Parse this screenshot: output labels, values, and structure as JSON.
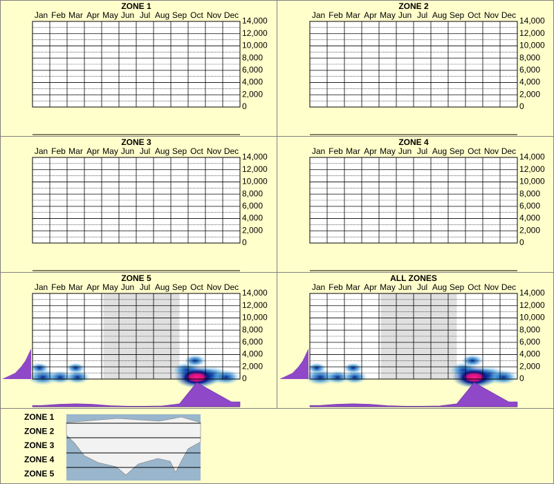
{
  "chart_data": [
    {
      "type": "heatmap",
      "title": "ZONE 1",
      "categories": [
        "Jan",
        "Feb",
        "Mar",
        "Apr",
        "May",
        "Jun",
        "Jul",
        "Aug",
        "Sep",
        "Oct",
        "Nov",
        "Dec"
      ],
      "ylim": [
        0,
        14000
      ],
      "yticks": [
        0,
        {
          "value": 2000,
          "label": "2,000"
        },
        {
          "value": 4000,
          "label": "4,000"
        },
        {
          "value": 6000,
          "label": "6,000"
        },
        {
          "value": 8000,
          "label": "8,000"
        },
        {
          "value": 10000,
          "label": "10,000"
        },
        {
          "value": 12000,
          "label": "12,000"
        },
        {
          "value": 14000,
          "label": "14,000"
        }
      ],
      "grid": true
    },
    {
      "type": "heatmap",
      "title": "ZONE 2",
      "categories": [
        "Jan",
        "Feb",
        "Mar",
        "Apr",
        "May",
        "Jun",
        "Jul",
        "Aug",
        "Sep",
        "Oct",
        "Nov",
        "Dec"
      ],
      "ylim": [
        0,
        14000
      ],
      "yticks": [
        0,
        {
          "value": 2000,
          "label": "2,000"
        },
        {
          "value": 4000,
          "label": "4,000"
        },
        {
          "value": 6000,
          "label": "6,000"
        },
        {
          "value": 8000,
          "label": "8,000"
        },
        {
          "value": 10000,
          "label": "10,000"
        },
        {
          "value": 12000,
          "label": "12,000"
        },
        {
          "value": 14000,
          "label": "14,000"
        }
      ],
      "grid": true
    },
    {
      "type": "heatmap",
      "title": "ZONE 3",
      "categories": [
        "Jan",
        "Feb",
        "Mar",
        "Apr",
        "May",
        "Jun",
        "Jul",
        "Aug",
        "Sep",
        "Oct",
        "Nov",
        "Dec"
      ],
      "ylim": [
        0,
        14000
      ],
      "yticks": [
        0,
        {
          "value": 2000,
          "label": "2,000"
        },
        {
          "value": 4000,
          "label": "4,000"
        },
        {
          "value": 6000,
          "label": "6,000"
        },
        {
          "value": 8000,
          "label": "8,000"
        },
        {
          "value": 10000,
          "label": "10,000"
        },
        {
          "value": 12000,
          "label": "12,000"
        },
        {
          "value": 14000,
          "label": "14,000"
        }
      ],
      "grid": true
    },
    {
      "type": "heatmap",
      "title": "ZONE 4",
      "categories": [
        "Jan",
        "Feb",
        "Mar",
        "Apr",
        "May",
        "Jun",
        "Jul",
        "Aug",
        "Sep",
        "Oct",
        "Nov",
        "Dec"
      ],
      "ylim": [
        0,
        14000
      ],
      "yticks": [
        0,
        {
          "value": 2000,
          "label": "2,000"
        },
        {
          "value": 4000,
          "label": "4,000"
        },
        {
          "value": 6000,
          "label": "6,000"
        },
        {
          "value": 8000,
          "label": "8,000"
        },
        {
          "value": 10000,
          "label": "10,000"
        },
        {
          "value": 12000,
          "label": "12,000"
        },
        {
          "value": 14000,
          "label": "14,000"
        }
      ],
      "grid": true
    },
    {
      "type": "heatmap",
      "title": "ZONE 5",
      "categories": [
        "Jan",
        "Feb",
        "Mar",
        "Apr",
        "May",
        "Jun",
        "Jul",
        "Aug",
        "Sep",
        "Oct",
        "Nov",
        "Dec"
      ],
      "ylim": [
        0,
        14000
      ],
      "yticks": [
        0,
        {
          "value": 2000,
          "label": "2,000"
        },
        {
          "value": 4000,
          "label": "4,000"
        },
        {
          "value": 6000,
          "label": "6,000"
        },
        {
          "value": 8000,
          "label": "8,000"
        },
        {
          "value": 10000,
          "label": "10,000"
        },
        {
          "value": 12000,
          "label": "12,000"
        },
        {
          "value": 14000,
          "label": "14,000"
        }
      ],
      "grid": true,
      "shaded": true,
      "hotspots": [
        {
          "month": 0.6,
          "y": 300,
          "weight": 0.6
        },
        {
          "month": 1.6,
          "y": 300,
          "weight": 0.4
        },
        {
          "month": 2.6,
          "y": 300,
          "weight": 0.4
        },
        {
          "month": 0.4,
          "y": 1800,
          "weight": 0.2
        },
        {
          "month": 2.5,
          "y": 1800,
          "weight": 0.2
        },
        {
          "month": 8.9,
          "y": 1500,
          "weight": 0.5
        },
        {
          "month": 9.4,
          "y": 3000,
          "weight": 0.3
        },
        {
          "month": 10.3,
          "y": 600,
          "weight": 0.8
        },
        {
          "month": 11.2,
          "y": 300,
          "weight": 0.5
        },
        {
          "month": 9.5,
          "y": 300,
          "weight": 1
        }
      ],
      "month_density": [
        5,
        10,
        12,
        10,
        4,
        2,
        2,
        3,
        12,
        100,
        60,
        20
      ],
      "elevation_levels": [
        0,
        1000,
        2000,
        3000,
        4000,
        5000
      ],
      "elevation_density": [
        100,
        55,
        35,
        20,
        10,
        0
      ]
    },
    {
      "type": "heatmap",
      "title": "ALL ZONES",
      "categories": [
        "Jan",
        "Feb",
        "Mar",
        "Apr",
        "May",
        "Jun",
        "Jul",
        "Aug",
        "Sep",
        "Oct",
        "Nov",
        "Dec"
      ],
      "ylim": [
        0,
        14000
      ],
      "yticks": [
        0,
        {
          "value": 2000,
          "label": "2,000"
        },
        {
          "value": 4000,
          "label": "4,000"
        },
        {
          "value": 6000,
          "label": "6,000"
        },
        {
          "value": 8000,
          "label": "8,000"
        },
        {
          "value": 10000,
          "label": "10,000"
        },
        {
          "value": 12000,
          "label": "12,000"
        },
        {
          "value": 14000,
          "label": "14,000"
        }
      ],
      "grid": true,
      "shaded": true,
      "hotspots": [
        {
          "month": 0.6,
          "y": 300,
          "weight": 0.6
        },
        {
          "month": 1.6,
          "y": 300,
          "weight": 0.4
        },
        {
          "month": 2.6,
          "y": 300,
          "weight": 0.4
        },
        {
          "month": 0.4,
          "y": 1800,
          "weight": 0.2
        },
        {
          "month": 2.5,
          "y": 1800,
          "weight": 0.2
        },
        {
          "month": 8.9,
          "y": 1500,
          "weight": 0.5
        },
        {
          "month": 9.4,
          "y": 3000,
          "weight": 0.3
        },
        {
          "month": 10.3,
          "y": 600,
          "weight": 0.8
        },
        {
          "month": 11.2,
          "y": 300,
          "weight": 0.5
        },
        {
          "month": 9.5,
          "y": 300,
          "weight": 1
        }
      ],
      "month_density": [
        5,
        10,
        12,
        10,
        4,
        2,
        2,
        3,
        12,
        100,
        60,
        20
      ],
      "elevation_levels": [
        0,
        1000,
        2000,
        3000,
        4000,
        5000
      ],
      "elevation_density": [
        100,
        55,
        35,
        20,
        10,
        0
      ]
    }
  ],
  "legend": {
    "zones": [
      "ZONE 1",
      "ZONE 2",
      "ZONE 3",
      "ZONE 4",
      "ZONE 5"
    ]
  }
}
